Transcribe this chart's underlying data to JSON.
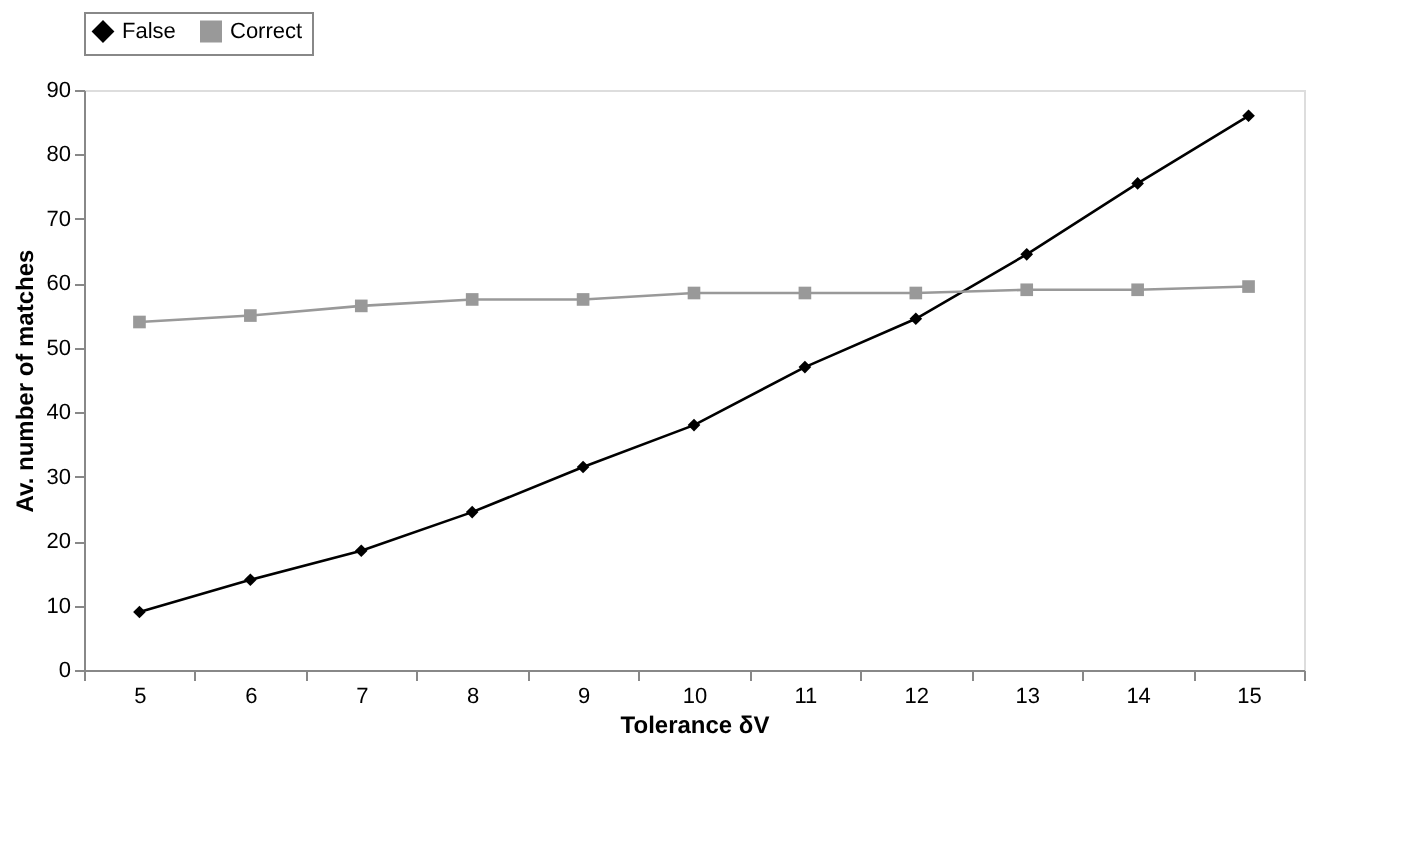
{
  "chart_data": {
    "type": "line",
    "xlabel": "Tolerance δV",
    "ylabel": "Av. number of matches",
    "categories": [
      "5",
      "6",
      "7",
      "8",
      "9",
      "10",
      "11",
      "12",
      "13",
      "14",
      "15"
    ],
    "series": [
      {
        "name": "False",
        "color": "#000000",
        "marker": "diamond",
        "values": [
          9,
          14,
          18.5,
          24.5,
          31.5,
          38,
          47,
          54.5,
          64.5,
          75.5,
          86
        ]
      },
      {
        "name": "Correct",
        "color": "#999999",
        "marker": "square",
        "values": [
          54,
          55,
          56.5,
          57.5,
          57.5,
          58.5,
          58.5,
          58.5,
          59,
          59,
          59.5
        ]
      }
    ],
    "ylim": [
      0,
      90
    ],
    "yticks": [
      0,
      10,
      20,
      30,
      40,
      50,
      60,
      70,
      80,
      90
    ],
    "grid": false,
    "legend": "top",
    "line_style": "solid"
  }
}
